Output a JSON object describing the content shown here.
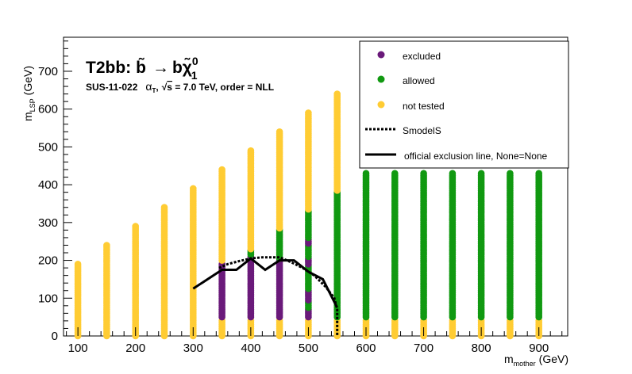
{
  "chart_data": {
    "type": "scatter",
    "title": "T2bb: b̃ → bχ̃₀¹",
    "title_parts": {
      "model": "T2bb:",
      "sbottom": "b̃",
      "arrow": "→",
      "decay": "bχ̃",
      "neutralino_super": "0",
      "neutralino_sub": "1"
    },
    "subtitle": "SUS-11-022   αT, √s = 7.0 TeV, order = NLL",
    "subtitle_parts": {
      "analysis": "SUS-11-022",
      "alpha": "α",
      "alpha_sub": "T",
      "comma": ",",
      "sqrt_symbol": "√",
      "s": "s",
      "energy": " =  7.0 TeV, order =  NLL"
    },
    "xlabel": "m",
    "xlabel_sub": "mother",
    "xlabel_unit": "(GeV)",
    "ylabel": "m",
    "ylabel_sub": "LSP",
    "ylabel_unit": "(GeV)",
    "xlim": [
      75,
      950
    ],
    "ylim": [
      0,
      790
    ],
    "x_ticks": [
      100,
      200,
      300,
      400,
      500,
      600,
      700,
      800,
      900
    ],
    "y_ticks": [
      0,
      100,
      200,
      300,
      400,
      500,
      600,
      700
    ],
    "grid": false,
    "legend_position": "top-right",
    "legend": {
      "excluded": "excluded",
      "allowed": "allowed",
      "not_tested": "not tested",
      "smodels": "SmodelS",
      "official": "official exclusion line, None=None"
    },
    "colors": {
      "excluded": "#6a1a7a",
      "allowed": "#119911",
      "not_tested": "#ffcc33",
      "line": "#000000"
    },
    "points_columns": [
      {
        "x": 100,
        "segments": [
          {
            "status": "not_tested",
            "ymin": 0,
            "ymax": 190
          }
        ]
      },
      {
        "x": 150,
        "segments": [
          {
            "status": "not_tested",
            "ymin": 0,
            "ymax": 240
          }
        ]
      },
      {
        "x": 200,
        "segments": [
          {
            "status": "not_tested",
            "ymin": 0,
            "ymax": 290
          }
        ]
      },
      {
        "x": 250,
        "segments": [
          {
            "status": "not_tested",
            "ymin": 0,
            "ymax": 340
          }
        ]
      },
      {
        "x": 300,
        "segments": [
          {
            "status": "not_tested",
            "ymin": 0,
            "ymax": 390
          }
        ]
      },
      {
        "x": 350,
        "segments": [
          {
            "status": "not_tested",
            "ymin": 0,
            "ymax": 40
          },
          {
            "status": "excluded",
            "ymin": 50,
            "ymax": 190
          },
          {
            "status": "not_tested",
            "ymin": 200,
            "ymax": 440
          }
        ]
      },
      {
        "x": 400,
        "segments": [
          {
            "status": "not_tested",
            "ymin": 0,
            "ymax": 40
          },
          {
            "status": "excluded",
            "ymin": 50,
            "ymax": 210
          },
          {
            "status": "allowed",
            "ymin": 215,
            "ymax": 225
          },
          {
            "status": "not_tested",
            "ymin": 230,
            "ymax": 490
          }
        ]
      },
      {
        "x": 450,
        "segments": [
          {
            "status": "not_tested",
            "ymin": 0,
            "ymax": 40
          },
          {
            "status": "excluded",
            "ymin": 50,
            "ymax": 200
          },
          {
            "status": "allowed",
            "ymin": 205,
            "ymax": 280
          },
          {
            "status": "not_tested",
            "ymin": 285,
            "ymax": 540
          }
        ]
      },
      {
        "x": 500,
        "segments": [
          {
            "status": "not_tested",
            "ymin": 0,
            "ymax": 40
          },
          {
            "status": "excluded",
            "ymin": 50,
            "ymax": 70
          },
          {
            "status": "allowed",
            "ymin": 75,
            "ymax": 90
          },
          {
            "status": "excluded",
            "ymin": 95,
            "ymax": 120
          },
          {
            "status": "allowed",
            "ymin": 125,
            "ymax": 185
          },
          {
            "status": "excluded",
            "ymin": 190,
            "ymax": 205
          },
          {
            "status": "allowed",
            "ymin": 210,
            "ymax": 240
          },
          {
            "status": "excluded",
            "ymin": 245,
            "ymax": 255
          },
          {
            "status": "allowed",
            "ymin": 260,
            "ymax": 330
          },
          {
            "status": "not_tested",
            "ymin": 335,
            "ymax": 590
          }
        ]
      },
      {
        "x": 550,
        "segments": [
          {
            "status": "not_tested",
            "ymin": 0,
            "ymax": 40
          },
          {
            "status": "allowed",
            "ymin": 50,
            "ymax": 380
          },
          {
            "status": "not_tested",
            "ymin": 385,
            "ymax": 640
          }
        ]
      },
      {
        "x": 600,
        "segments": [
          {
            "status": "not_tested",
            "ymin": 0,
            "ymax": 40
          },
          {
            "status": "allowed",
            "ymin": 50,
            "ymax": 430
          }
        ]
      },
      {
        "x": 650,
        "segments": [
          {
            "status": "not_tested",
            "ymin": 0,
            "ymax": 40
          },
          {
            "status": "allowed",
            "ymin": 50,
            "ymax": 430
          }
        ]
      },
      {
        "x": 700,
        "segments": [
          {
            "status": "not_tested",
            "ymin": 0,
            "ymax": 40
          },
          {
            "status": "allowed",
            "ymin": 50,
            "ymax": 430
          }
        ]
      },
      {
        "x": 750,
        "segments": [
          {
            "status": "not_tested",
            "ymin": 0,
            "ymax": 40
          },
          {
            "status": "allowed",
            "ymin": 50,
            "ymax": 430
          }
        ]
      },
      {
        "x": 800,
        "segments": [
          {
            "status": "not_tested",
            "ymin": 0,
            "ymax": 40
          },
          {
            "status": "allowed",
            "ymin": 50,
            "ymax": 430
          }
        ]
      },
      {
        "x": 850,
        "segments": [
          {
            "status": "not_tested",
            "ymin": 0,
            "ymax": 40
          },
          {
            "status": "allowed",
            "ymin": 50,
            "ymax": 430
          }
        ]
      },
      {
        "x": 900,
        "segments": [
          {
            "status": "not_tested",
            "ymin": 0,
            "ymax": 40
          },
          {
            "status": "allowed",
            "ymin": 50,
            "ymax": 430
          }
        ]
      }
    ],
    "series": [
      {
        "name": "SmodelS",
        "style": "dotted",
        "x": [
          345,
          360,
          380,
          400,
          420,
          450,
          470,
          490,
          510,
          530,
          545,
          550,
          550
        ],
        "y": [
          180,
          190,
          198,
          205,
          208,
          208,
          195,
          180,
          160,
          130,
          100,
          70,
          0
        ]
      },
      {
        "name": "official exclusion line, None=None",
        "style": "solid",
        "x": [
          300,
          350,
          375,
          400,
          425,
          450,
          475,
          500,
          525,
          550
        ],
        "y": [
          125,
          175,
          175,
          205,
          175,
          200,
          200,
          170,
          150,
          75
        ]
      }
    ]
  }
}
